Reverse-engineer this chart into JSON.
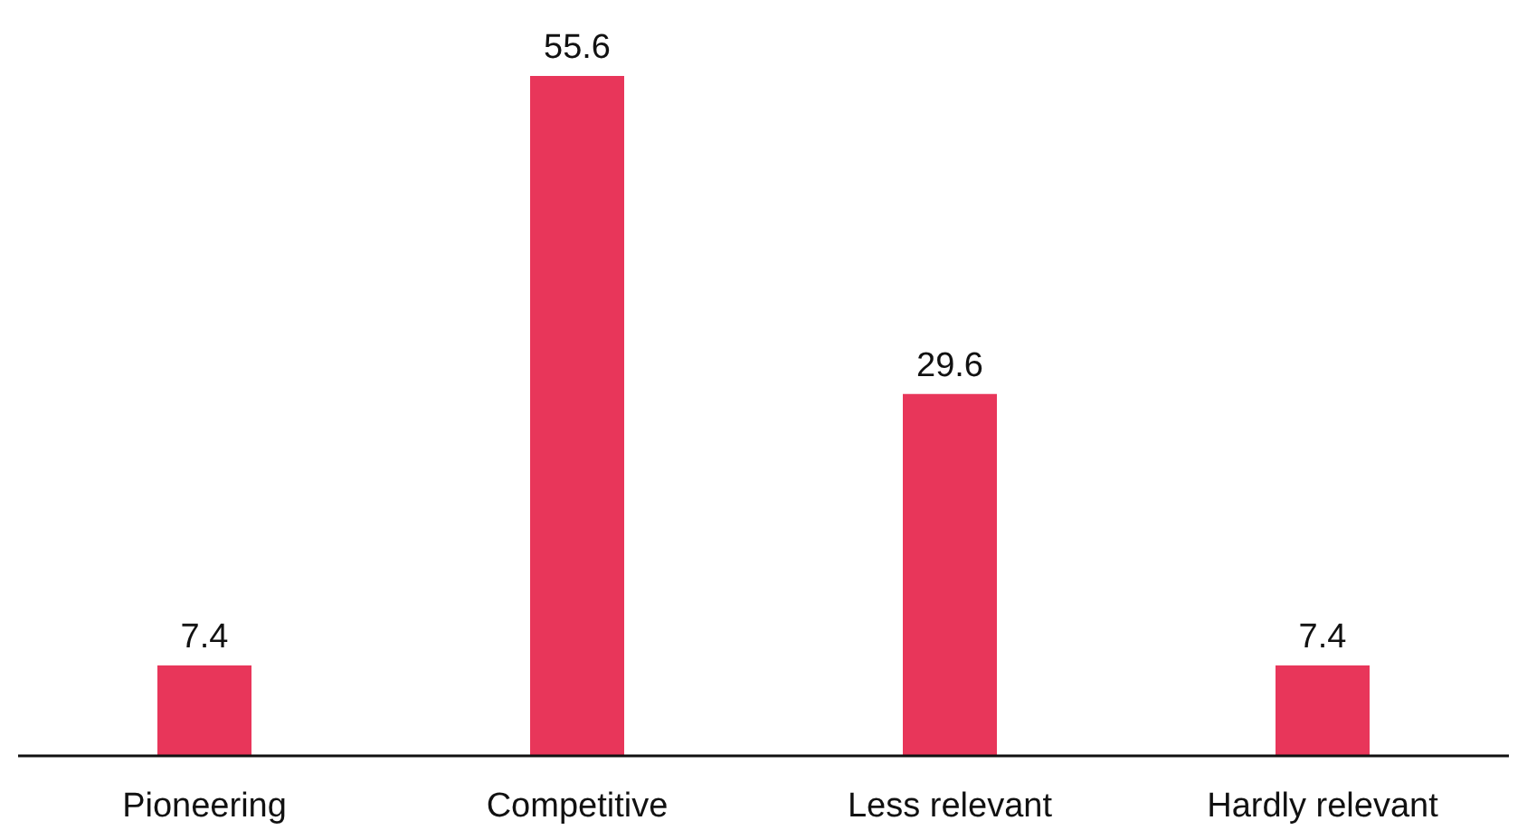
{
  "chart_data": {
    "type": "bar",
    "categories": [
      "Pioneering",
      "Competitive",
      "Less relevant",
      "Hardly relevant"
    ],
    "values": [
      7.4,
      55.6,
      29.6,
      7.4
    ],
    "color": "#e8365a",
    "data_labels": true
  }
}
